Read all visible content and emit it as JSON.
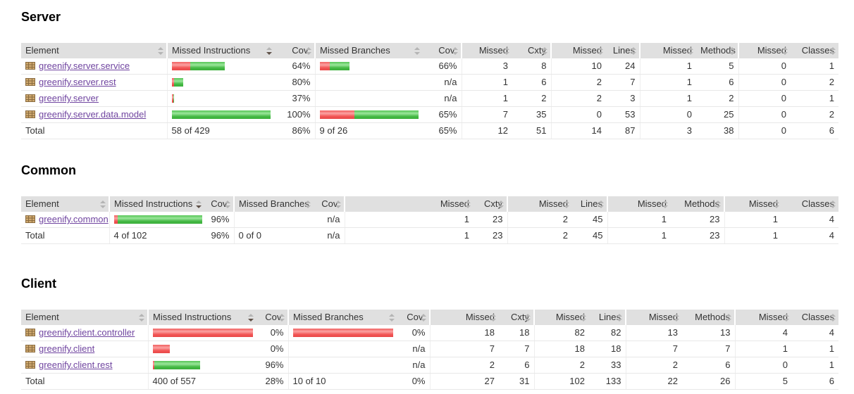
{
  "colors": {
    "header_bg": "#e0e0e0",
    "bar_red": "#ee4444",
    "bar_green": "#46ba46",
    "link": "#7045a0"
  },
  "sort": {
    "column": "Missed Instructions",
    "direction": "desc"
  },
  "icons": {
    "package": "package-grid-icon",
    "sortable": "sort-arrows-icon",
    "sorted": "sort-desc-icon"
  },
  "columns": [
    "Element",
    "Missed Instructions",
    "Cov.",
    "Missed Branches",
    "Cov.",
    "Missed",
    "Cxty",
    "Missed",
    "Lines",
    "Missed",
    "Methods",
    "Missed",
    "Classes"
  ],
  "sections": [
    {
      "title": "Server",
      "rows": [
        {
          "label": "greenify.server.service",
          "bar_red": 26,
          "bar_green": 49,
          "cov": "64%",
          "br_red": 14,
          "br_green": 28,
          "br_cov": "66%",
          "vals": [
            "3",
            "8",
            "10",
            "24",
            "1",
            "5",
            "0",
            "1"
          ]
        },
        {
          "label": "greenify.server.rest",
          "bar_red": 3,
          "bar_green": 13,
          "cov": "80%",
          "br_red": 0,
          "br_green": 0,
          "br_cov": "n/a",
          "vals": [
            "1",
            "6",
            "2",
            "7",
            "1",
            "6",
            "0",
            "2"
          ]
        },
        {
          "label": "greenify.server",
          "bar_red": 2,
          "bar_green": 1,
          "cov": "37%",
          "br_red": 0,
          "br_green": 0,
          "br_cov": "n/a",
          "vals": [
            "1",
            "2",
            "2",
            "3",
            "1",
            "2",
            "0",
            "1"
          ]
        },
        {
          "label": "greenify.server.data.model",
          "bar_red": 0,
          "bar_green": 140,
          "cov": "100%",
          "br_red": 49,
          "br_green": 91,
          "br_cov": "65%",
          "vals": [
            "7",
            "35",
            "0",
            "53",
            "0",
            "25",
            "0",
            "2"
          ]
        }
      ],
      "total": {
        "label": "Total",
        "instr": "58 of 429",
        "cov": "86%",
        "branch": "9 of 26",
        "br_cov": "65%",
        "vals": [
          "12",
          "51",
          "14",
          "87",
          "3",
          "38",
          "0",
          "6"
        ]
      }
    },
    {
      "title": "Common",
      "rows": [
        {
          "label": "greenify.common",
          "bar_red": 5,
          "bar_green": 120,
          "cov": "96%",
          "br_red": 0,
          "br_green": 0,
          "br_cov": "n/a",
          "vals": [
            "1",
            "23",
            "2",
            "45",
            "1",
            "23",
            "1",
            "4"
          ]
        }
      ],
      "total": {
        "label": "Total",
        "instr": "4 of 102",
        "cov": "96%",
        "branch": "0 of 0",
        "br_cov": "n/a",
        "vals": [
          "1",
          "23",
          "2",
          "45",
          "1",
          "23",
          "1",
          "4"
        ]
      }
    },
    {
      "title": "Client",
      "rows": [
        {
          "label": "greenify.client.controller",
          "bar_red": 142,
          "bar_green": 0,
          "cov": "0%",
          "br_red": 142,
          "br_green": 0,
          "br_cov": "0%",
          "vals": [
            "18",
            "18",
            "82",
            "82",
            "13",
            "13",
            "4",
            "4"
          ]
        },
        {
          "label": "greenify.client",
          "bar_red": 24,
          "bar_green": 0,
          "cov": "0%",
          "br_red": 0,
          "br_green": 0,
          "br_cov": "n/a",
          "vals": [
            "7",
            "7",
            "18",
            "18",
            "7",
            "7",
            "1",
            "1"
          ]
        },
        {
          "label": "greenify.client.rest",
          "bar_red": 2,
          "bar_green": 65,
          "cov": "96%",
          "br_red": 0,
          "br_green": 0,
          "br_cov": "n/a",
          "vals": [
            "2",
            "6",
            "2",
            "33",
            "2",
            "6",
            "0",
            "1"
          ]
        }
      ],
      "total": {
        "label": "Total",
        "instr": "400 of 557",
        "cov": "28%",
        "branch": "10 of 10",
        "br_cov": "0%",
        "vals": [
          "27",
          "31",
          "102",
          "133",
          "22",
          "26",
          "5",
          "6"
        ]
      }
    }
  ]
}
